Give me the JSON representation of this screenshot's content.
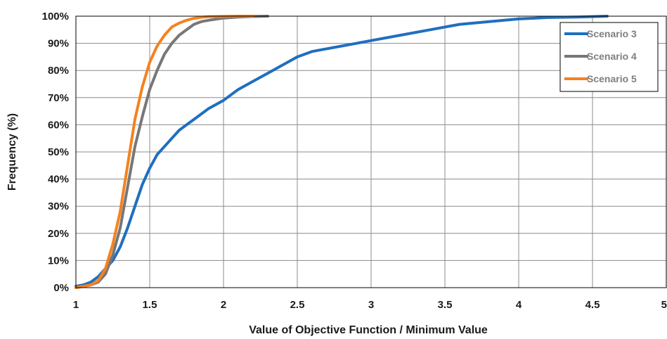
{
  "chart_data": {
    "type": "line",
    "title": "",
    "xlabel": "Value of Objective Function / Minimum Value",
    "ylabel": "Frequency (%)",
    "xlim": [
      1,
      5
    ],
    "ylim": [
      0,
      100
    ],
    "x_ticks": [
      1,
      1.5,
      2,
      2.5,
      3,
      3.5,
      4,
      4.5,
      5
    ],
    "x_tick_labels": [
      "1",
      "1.5",
      "2",
      "2.5",
      "3",
      "3.5",
      "4",
      "4.5",
      "5"
    ],
    "y_ticks": [
      0,
      10,
      20,
      30,
      40,
      50,
      60,
      70,
      80,
      90,
      100
    ],
    "y_tick_labels": [
      "0%",
      "10%",
      "20%",
      "30%",
      "40%",
      "50%",
      "60%",
      "70%",
      "80%",
      "90%",
      "100%"
    ],
    "grid": true,
    "legend": "top-right",
    "series": [
      {
        "name": "Scenario 3",
        "color": "#1f6fbf",
        "x": [
          1.0,
          1.05,
          1.1,
          1.15,
          1.2,
          1.25,
          1.3,
          1.35,
          1.4,
          1.45,
          1.5,
          1.55,
          1.6,
          1.65,
          1.7,
          1.75,
          1.8,
          1.85,
          1.9,
          2.0,
          2.1,
          2.2,
          2.3,
          2.4,
          2.5,
          2.6,
          2.7,
          2.8,
          3.0,
          3.2,
          3.4,
          3.6,
          3.8,
          4.0,
          4.2,
          4.4,
          4.6
        ],
        "values": [
          0.5,
          1,
          2,
          4,
          7,
          10,
          15,
          22,
          30,
          38,
          44,
          49,
          52,
          55,
          58,
          60,
          62,
          64,
          66,
          69,
          73,
          76,
          79,
          82,
          85,
          87,
          88,
          89,
          91,
          93,
          95,
          97,
          98,
          99,
          99.5,
          99.7,
          100
        ]
      },
      {
        "name": "Scenario 4",
        "color": "#777777",
        "x": [
          1.0,
          1.05,
          1.1,
          1.15,
          1.2,
          1.25,
          1.3,
          1.35,
          1.4,
          1.45,
          1.5,
          1.55,
          1.6,
          1.65,
          1.7,
          1.75,
          1.8,
          1.85,
          1.9,
          2.0,
          2.1,
          2.2,
          2.3
        ],
        "values": [
          0,
          0.5,
          1,
          2,
          5,
          12,
          22,
          37,
          52,
          63,
          73,
          80,
          86,
          90,
          93,
          95,
          97,
          98,
          98.5,
          99.3,
          99.7,
          99.9,
          100
        ]
      },
      {
        "name": "Scenario 5",
        "color": "#f58220",
        "x": [
          1.0,
          1.05,
          1.1,
          1.15,
          1.2,
          1.25,
          1.3,
          1.35,
          1.4,
          1.45,
          1.5,
          1.55,
          1.6,
          1.65,
          1.7,
          1.75,
          1.8,
          1.85,
          1.9,
          2.0,
          2.1,
          2.2
        ],
        "values": [
          0,
          0.5,
          1,
          2.5,
          7,
          16,
          28,
          45,
          62,
          74,
          83,
          89,
          93,
          96,
          97.5,
          98.5,
          99.2,
          99.6,
          99.8,
          99.9,
          100,
          100
        ]
      }
    ]
  }
}
